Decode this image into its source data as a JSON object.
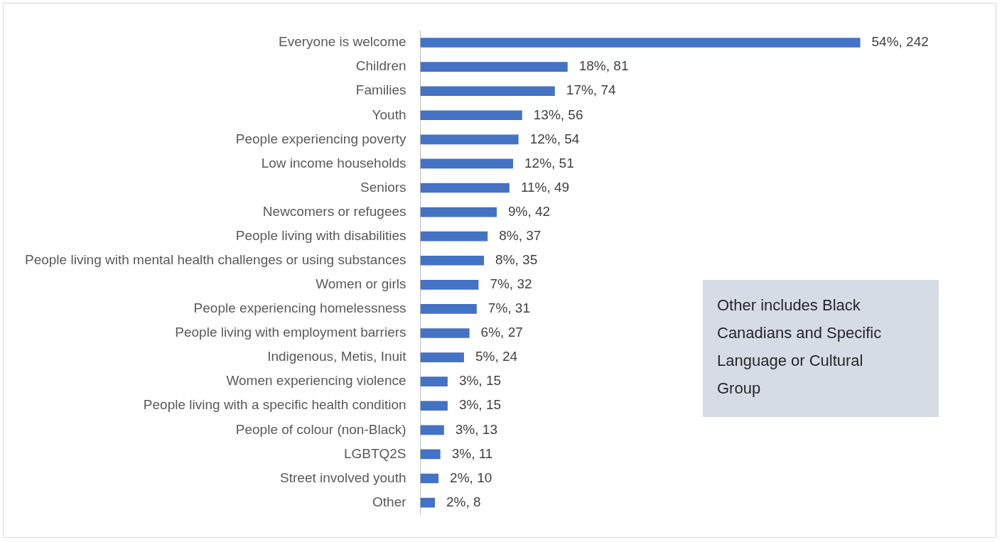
{
  "chart_data": {
    "type": "bar",
    "orientation": "horizontal",
    "categories": [
      "Everyone is welcome",
      "Children",
      "Families",
      "Youth",
      "People experiencing poverty",
      "Low income households",
      "Seniors",
      "Newcomers or refugees",
      "People living with disabilities",
      "People living with mental health challenges or using substances",
      "Women or girls",
      "People experiencing homelessness",
      "People living with employment barriers",
      "Indigenous, Metis, Inuit",
      "Women experiencing violence",
      "People living with a specific health condition",
      "People of colour (non-Black)",
      "LGBTQ2S",
      "Street involved youth",
      "Other"
    ],
    "values": [
      242,
      81,
      74,
      56,
      54,
      51,
      49,
      42,
      37,
      35,
      32,
      31,
      27,
      24,
      15,
      15,
      13,
      11,
      10,
      8
    ],
    "value_labels": [
      "54%, 242",
      "18%, 81",
      "17%, 74",
      "13%, 56",
      "12%, 54",
      "12%, 51",
      "11%, 49",
      "9%, 42",
      "8%, 37",
      "8%, 35",
      "7%, 32",
      "7%, 31",
      "6%, 27",
      "5%, 24",
      "3%, 15",
      "3%, 15",
      "3%, 13",
      "3%, 11",
      "2%, 10",
      "2%, 8"
    ],
    "color": "#4472c4",
    "legend": false,
    "annotations": [
      "Other includes Black Canadians and Specific Language or Cultural Group"
    ]
  }
}
